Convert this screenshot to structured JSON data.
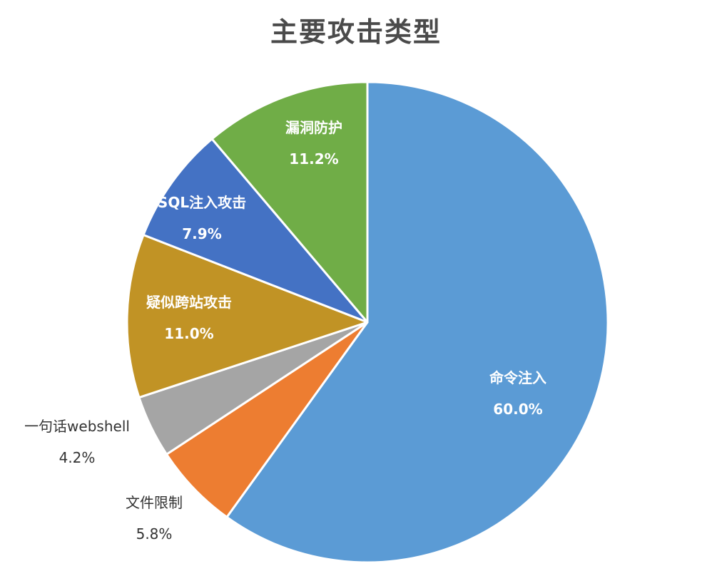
{
  "chart_data": {
    "type": "pie",
    "title": "主要攻击类型",
    "slices": [
      {
        "label": "命令注入",
        "value": 60.0,
        "value_label": "60.0%",
        "color": "#5b9bd5",
        "label_position": "inside"
      },
      {
        "label": "文件限制",
        "value": 5.8,
        "value_label": "5.8%",
        "color": "#ed7d31",
        "label_position": "outside"
      },
      {
        "label": "一句话webshell",
        "value": 4.2,
        "value_label": "4.2%",
        "color": "#a5a5a5",
        "label_position": "outside"
      },
      {
        "label": "疑似跨站攻击",
        "value": 11.0,
        "value_label": "11.0%",
        "color": "#c19325",
        "label_position": "inside"
      },
      {
        "label": "SQL注入攻击",
        "value": 7.9,
        "value_label": "7.9%",
        "color": "#4472c4",
        "label_position": "inside"
      },
      {
        "label": "漏洞防护",
        "value": 11.2,
        "value_label": "11.2%",
        "color": "#70ad47",
        "label_position": "inside"
      }
    ],
    "start_angle": "12 o'clock",
    "direction": "clockwise",
    "legend": "none"
  }
}
